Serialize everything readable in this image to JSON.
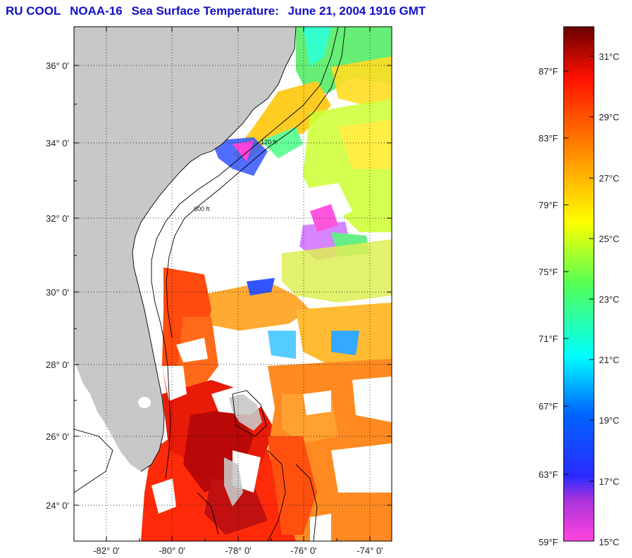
{
  "title": {
    "org": "RU COOL",
    "satellite": "NOAA-16",
    "product": "Sea Surface Temperature:",
    "datetime": "June 21, 2004 1916 GMT"
  },
  "map": {
    "region": "US Southeast coast / Bahamas",
    "lat_labels": [
      "36° 0'",
      "34° 0'",
      "32° 0'",
      "30° 0'",
      "28° 0'",
      "26° 0'",
      "24° 0'"
    ],
    "lon_labels": [
      "-82° 0'",
      "-80° 0'",
      "-78° 0'",
      "-76° 0'",
      "-74° 0'"
    ],
    "contours": [
      "120 ft",
      "600 ft"
    ],
    "colors": {
      "land": "#c8c8c8",
      "cloud": "#ffffff",
      "grid": "#000000"
    }
  },
  "colorbar": {
    "fahrenheit": [
      "87°F",
      "83°F",
      "79°F",
      "75°F",
      "71°F",
      "67°F",
      "63°F",
      "59°F"
    ],
    "celsius": [
      "31°C",
      "29°C",
      "27°C",
      "25°C",
      "23°C",
      "21°C",
      "19°C",
      "17°C",
      "15°C"
    ],
    "stops": [
      "#ff44dd",
      "#9933cc",
      "#1a33ff",
      "#00aaff",
      "#00ffff",
      "#33ff66",
      "#ffff00",
      "#ff8800",
      "#ff0000",
      "#700000"
    ]
  }
}
